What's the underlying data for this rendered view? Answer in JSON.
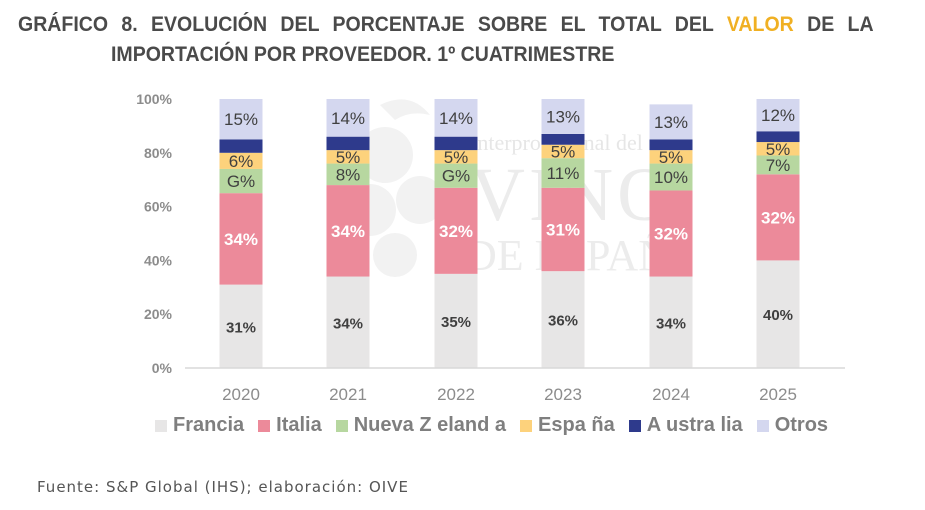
{
  "title": {
    "line1_before": "GRÁFICO 8. EVOLUCIÓN  DEL  PORCENTAJE  SOBRE  EL  TOTAL  DEL ",
    "line1_accent": "VALOR",
    "line1_after": " DE  LA",
    "line2": "IMPORTACIÓN POR PROVEEDOR. 1º CUATRIMESTRE",
    "accent_color": "#f0b023"
  },
  "watermark": {
    "line1": "Interprofesional del",
    "line2": "VINO",
    "line3": "DE ESPAÑA"
  },
  "source": "Fuente: S&P Global (IHS); elaboración: OIVE",
  "chart_data": {
    "type": "bar",
    "stacked": true,
    "title": "GRÁFICO 8. EVOLUCIÓN DEL PORCENTAJE SOBRE EL TOTAL DEL VALOR DE LA IMPORTACIÓN POR PROVEEDOR. 1º CUATRIMESTRE",
    "xlabel": "",
    "ylabel": "",
    "ylim": [
      0,
      100
    ],
    "yticks": [
      0,
      20,
      40,
      60,
      80,
      100
    ],
    "ytick_labels": [
      "0%",
      "20%",
      "40%",
      "60%",
      "80%",
      "100%"
    ],
    "grid": false,
    "legend_position": "bottom",
    "categories": [
      "2020",
      "2021",
      "2022",
      "2023",
      "2024",
      "2025"
    ],
    "series": [
      {
        "name": "Francia",
        "color": "#e7e6e6",
        "label_color": "#404040",
        "values": [
          31,
          34,
          35,
          36,
          34,
          40
        ],
        "labels": [
          "31%",
          "34%",
          "35%",
          "36%",
          "34%",
          "40%"
        ]
      },
      {
        "name": "Italia",
        "color": "#ec8a9a",
        "label_color": "#ffffff",
        "values": [
          34,
          34,
          32,
          31,
          32,
          32
        ],
        "labels": [
          "34%",
          "34%",
          "32%",
          "31%",
          "32%",
          "32%"
        ]
      },
      {
        "name": "Nueva Zelanda",
        "color": "#b7d7a0",
        "label_color": "#404040",
        "values": [
          9,
          8,
          9,
          11,
          10,
          7
        ],
        "labels": [
          "G%",
          "8%",
          "G%",
          "11%",
          "10%",
          "7%"
        ]
      },
      {
        "name": "España",
        "color": "#fdd27c",
        "label_color": "#404040",
        "values": [
          6,
          5,
          5,
          5,
          5,
          5
        ],
        "labels": [
          "6%",
          "5%",
          "5%",
          "5%",
          "5%",
          "5%"
        ]
      },
      {
        "name": "Australia",
        "color": "#2e3a8c",
        "label_color": "#ffffff",
        "values": [
          5,
          5,
          5,
          4,
          4,
          4
        ],
        "labels": [
          "",
          "",
          "",
          "",
          "",
          ""
        ]
      },
      {
        "name": "Otros",
        "color": "#d4d7ef",
        "label_color": "#404040",
        "values": [
          15,
          14,
          14,
          13,
          13,
          12
        ],
        "labels": [
          "15%",
          "14%",
          "14%",
          "13%",
          "13%",
          "12%"
        ]
      }
    ],
    "legend_labels": [
      "Francia",
      "Italia",
      "Nueva Z eland a",
      "Espa ña",
      "A ustra lia",
      "Otros"
    ]
  }
}
